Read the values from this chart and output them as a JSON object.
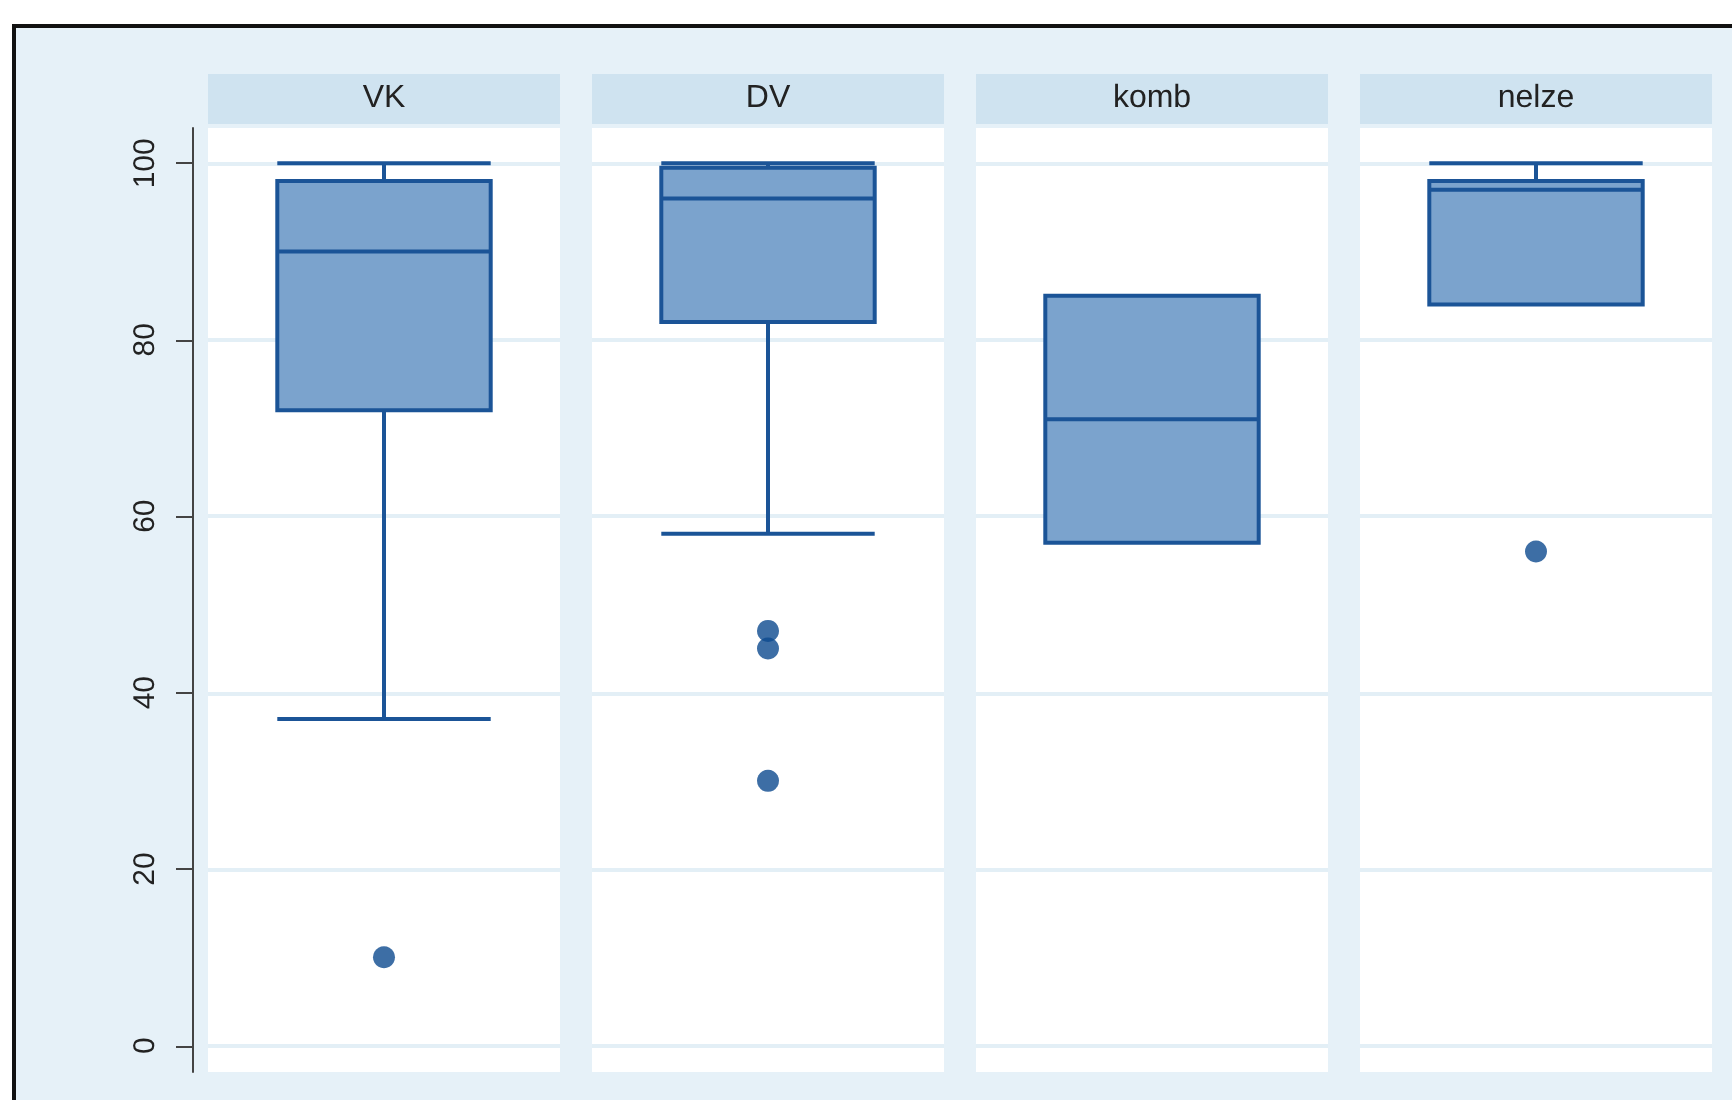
{
  "chart_data": {
    "type": "box",
    "categories": [
      "VK",
      "DV",
      "komb",
      "nelze"
    ],
    "boxes": [
      {
        "low": 37,
        "q1": 72,
        "median": 90,
        "q3": 98,
        "high": 100,
        "outliers": [
          10
        ]
      },
      {
        "low": 58,
        "q1": 82,
        "median": 96,
        "q3": 99.5,
        "high": 100,
        "outliers": [
          47,
          45,
          30
        ]
      },
      {
        "low": 57,
        "q1": 57,
        "median": 71,
        "q3": 85,
        "high": 85
      },
      {
        "low": 84,
        "q1": 84,
        "median": 97,
        "q3": 98,
        "high": 100,
        "outliers": [
          56
        ]
      }
    ],
    "color": "#7ba3cd",
    "ylim": [
      -3,
      104
    ],
    "yticks": [
      0,
      20,
      40,
      60,
      80,
      100
    ],
    "grid": "y"
  }
}
